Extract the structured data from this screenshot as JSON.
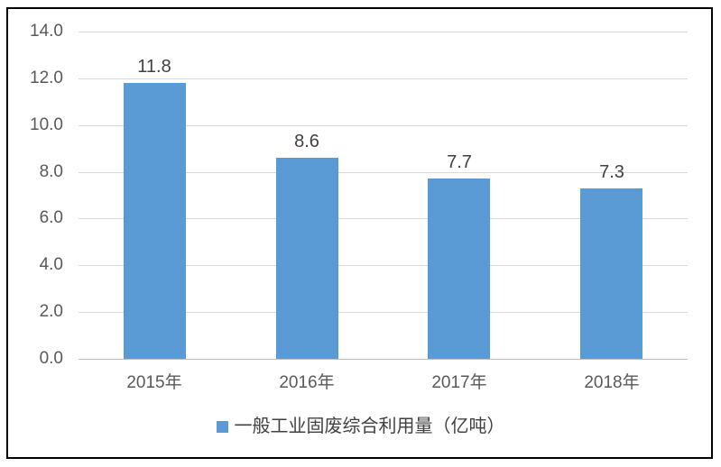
{
  "chart_data": {
    "type": "bar",
    "categories": [
      "2015年",
      "2016年",
      "2017年",
      "2018年"
    ],
    "values": [
      11.8,
      8.6,
      7.7,
      7.3
    ],
    "data_labels": [
      "11.8",
      "8.6",
      "7.7",
      "7.3"
    ],
    "title": "",
    "xlabel": "",
    "ylabel": "",
    "ylim": [
      0,
      14
    ],
    "ytick_step": 2,
    "ytick_labels": [
      "0.0",
      "2.0",
      "4.0",
      "6.0",
      "8.0",
      "10.0",
      "12.0",
      "14.0"
    ],
    "grid": true,
    "legend": "一般工业固废综合利用量（亿吨）",
    "legend_position": "bottom",
    "bar_color": "#5b9bd5"
  },
  "colors": {
    "bar": "#5b9bd5",
    "gridline": "#d9d9d9",
    "axis_line": "#bfbfbf",
    "axis_text": "#595959",
    "data_label_text": "#404040",
    "border": "#000000",
    "background": "#ffffff"
  }
}
